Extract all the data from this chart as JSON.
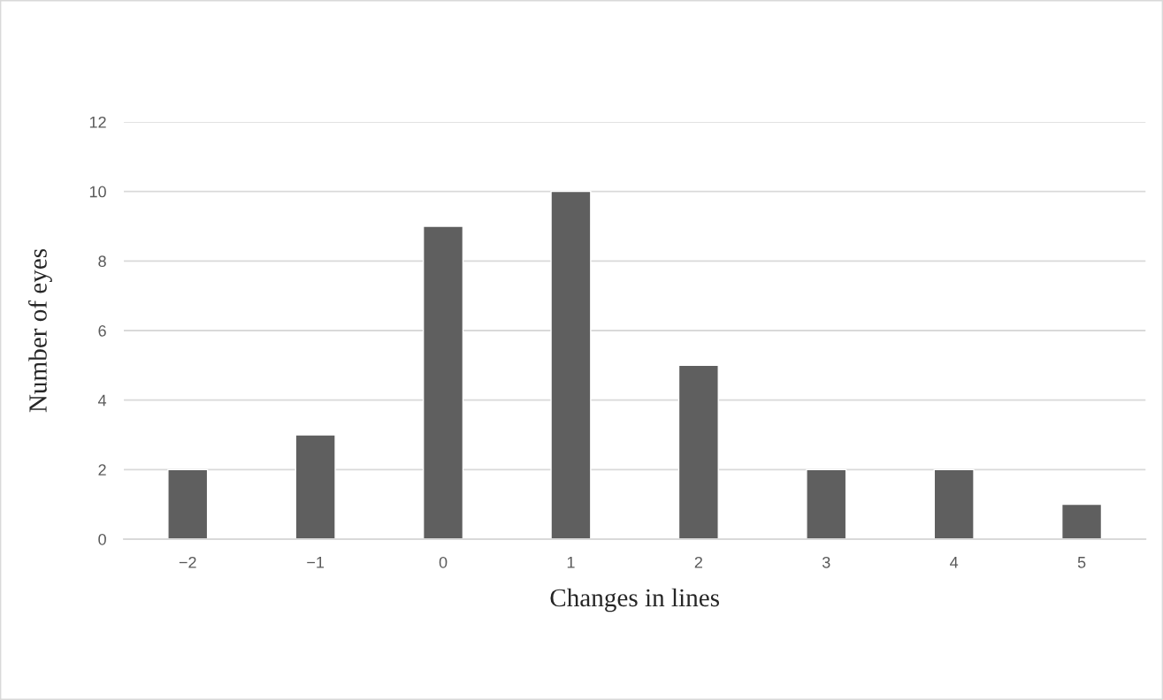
{
  "chart_data": {
    "type": "bar",
    "xlabel": "Changes in lines",
    "ylabel": "Number of eyes",
    "categories": [
      "−2",
      "−1",
      "0",
      "1",
      "2",
      "3",
      "4",
      "5"
    ],
    "values": [
      2,
      3,
      9,
      10,
      5,
      2,
      2,
      1
    ],
    "color": "#5f5f5f",
    "ylim": [
      0,
      12
    ],
    "yticks": [
      0,
      2,
      4,
      6,
      8,
      10,
      12
    ],
    "grid": "y",
    "legend": false
  }
}
